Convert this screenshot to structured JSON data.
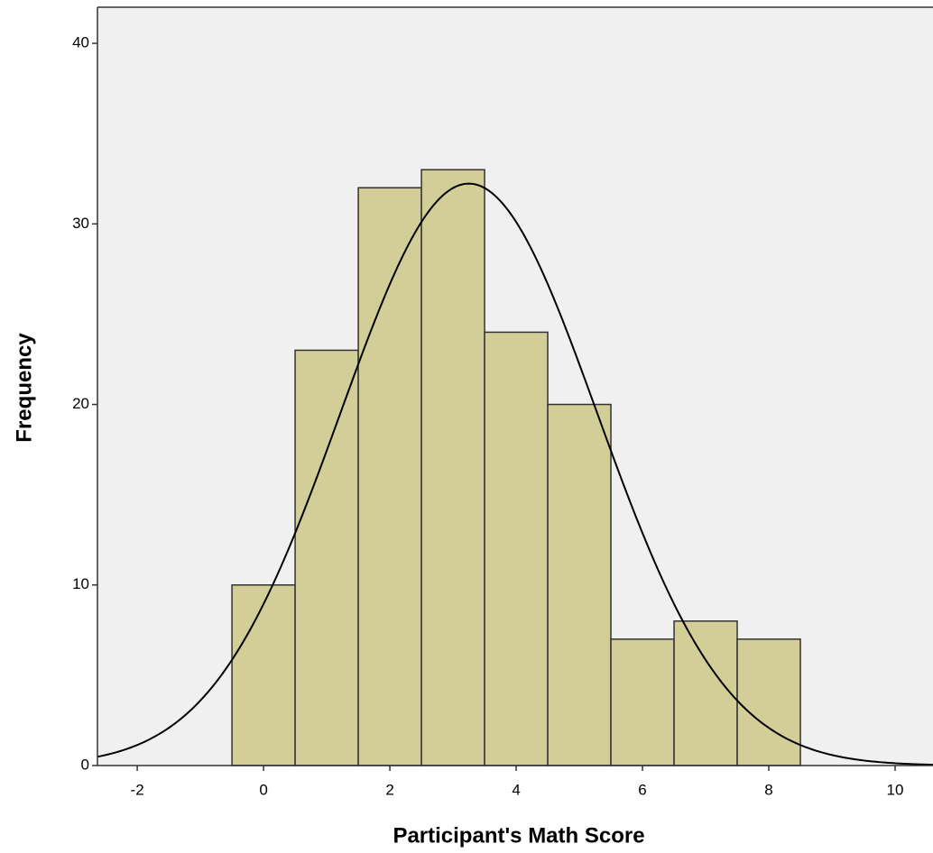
{
  "chart_data": {
    "type": "histogram",
    "xlabel": "Participant's Math Score",
    "ylabel": "Frequency",
    "bins": [
      -0.5,
      0.5,
      1.5,
      2.5,
      3.5,
      4.5,
      5.5,
      6.5,
      7.5,
      8.5
    ],
    "counts": [
      10,
      23,
      32,
      33,
      24,
      20,
      7,
      8,
      7
    ],
    "color": "#d3ce97",
    "normal_curve": {
      "mean": 3.25,
      "sd": 2.03
    },
    "xlim": [
      -2.63,
      10.6
    ],
    "xticks": [
      -2,
      0,
      2,
      4,
      6,
      8,
      10
    ],
    "ylim": [
      0,
      42
    ],
    "yticks": [
      0,
      10,
      20,
      30,
      40
    ]
  }
}
